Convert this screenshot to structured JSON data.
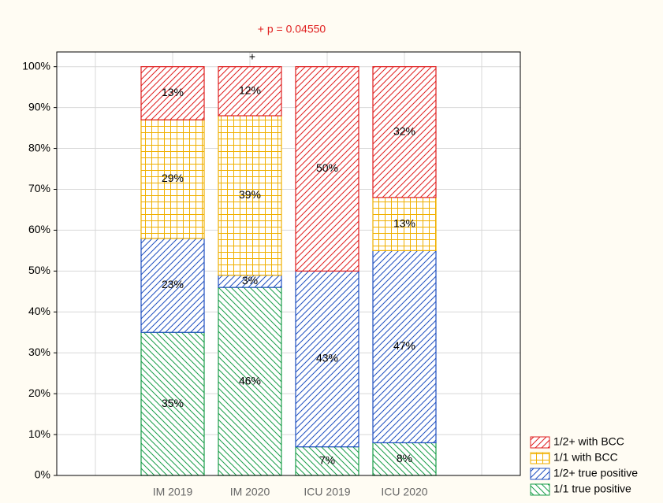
{
  "chart_data": {
    "type": "stacked_bar",
    "annotations": [
      "+ p = 0.04550",
      "+"
    ],
    "categories": [
      null,
      "IM 2019",
      "IM 2020",
      "ICU 2019",
      "ICU 2020",
      null
    ],
    "series": [
      {
        "name": "1/1 true positive",
        "color": "#1a9e4a",
        "pattern": "backslash",
        "values": [
          null,
          35,
          46,
          7,
          8,
          null
        ],
        "value_labels": [
          null,
          "35%",
          "46%",
          "7%",
          "8%",
          null
        ]
      },
      {
        "name": "1/2+ true positive",
        "color": "#2050c0",
        "pattern": "slash",
        "values": [
          null,
          23,
          3,
          43,
          47,
          null
        ],
        "value_labels": [
          null,
          "23%",
          "3%",
          "43%",
          "47%",
          null
        ]
      },
      {
        "name": "1/1 with BCC",
        "color": "#f0b000",
        "pattern": "grid",
        "values": [
          null,
          29,
          39,
          null,
          13,
          null
        ],
        "value_labels": [
          null,
          "29%",
          "39%",
          null,
          "13%",
          null
        ]
      },
      {
        "name": "1/2+ with BCC",
        "color": "#e02020",
        "pattern": "slash",
        "values": [
          null,
          13,
          12,
          50,
          32,
          null
        ],
        "value_labels": [
          null,
          "13%",
          "12%",
          "50%",
          "32%",
          null
        ]
      }
    ],
    "ylim": [
      0,
      103.6
    ],
    "yticks": [
      {
        "value": 0,
        "label": "0%"
      },
      {
        "value": 10,
        "label": "10%"
      },
      {
        "value": 20,
        "label": "20%"
      },
      {
        "value": 30,
        "label": "30%"
      },
      {
        "value": 40,
        "label": "40%"
      },
      {
        "value": 50,
        "label": "50%"
      },
      {
        "value": 60,
        "label": "60%"
      },
      {
        "value": 70,
        "label": "70%"
      },
      {
        "value": 80,
        "label": "80%"
      },
      {
        "value": 90,
        "label": "90%"
      },
      {
        "value": 100,
        "label": "100%"
      }
    ],
    "grid": true,
    "legend": "lower right"
  }
}
